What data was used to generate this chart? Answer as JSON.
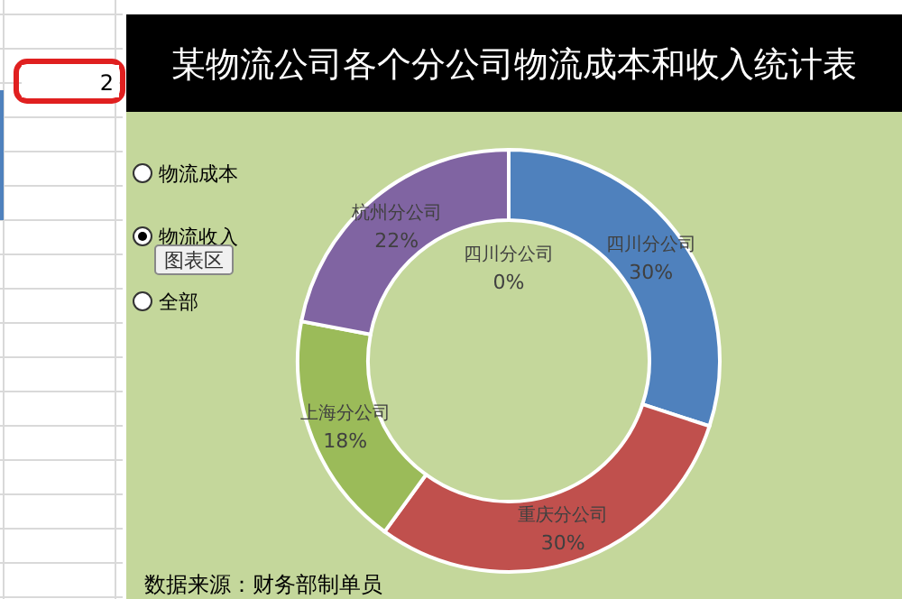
{
  "chart_data": {
    "type": "donut",
    "title": "某物流公司各个分公司物流成本和收入统计表",
    "categories": [
      "四川分公司",
      "四川分公司",
      "重庆分公司",
      "上海分公司",
      "杭州分公司"
    ],
    "values": [
      0,
      30,
      30,
      18,
      22
    ],
    "colors": [
      "#4f81bd",
      "#4f81bd",
      "#c0504d",
      "#9bbb59",
      "#8064a2"
    ],
    "value_labels": [
      "0%",
      "30%",
      "30%",
      "18%",
      "22%"
    ],
    "annotations": [
      "数据来源：财务部制单员",
      "物流成本",
      "物流收入",
      "全部",
      "图表区",
      "2"
    ]
  }
}
